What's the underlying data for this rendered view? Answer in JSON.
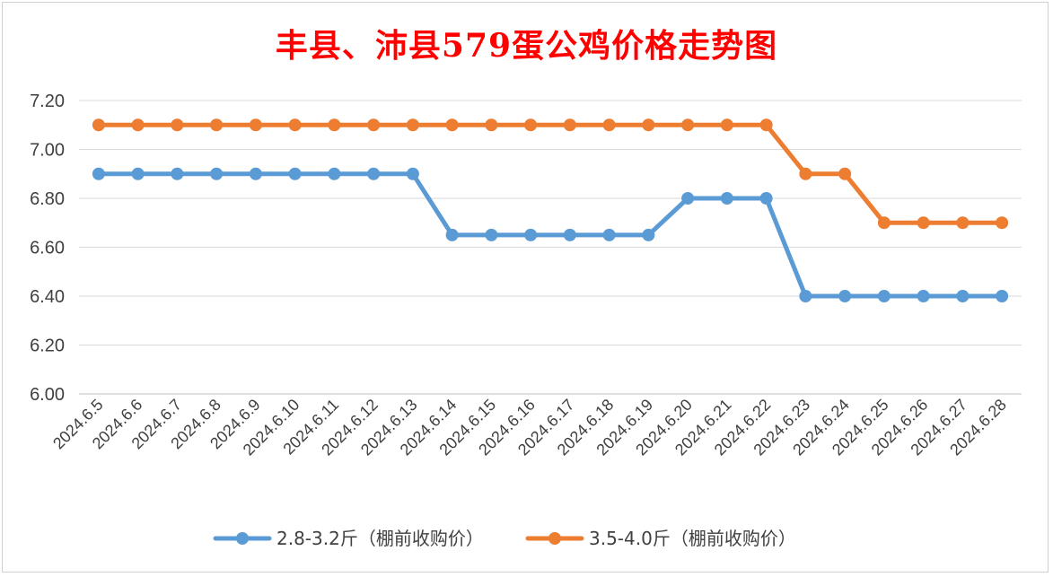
{
  "chart_data": {
    "type": "line",
    "title": "丰县、沛县579蛋公鸡价格走势图",
    "xlabel": "",
    "ylabel": "",
    "ylim": [
      6.0,
      7.2
    ],
    "yticks": [
      "6.00",
      "6.20",
      "6.40",
      "6.60",
      "6.80",
      "7.00",
      "7.20"
    ],
    "grid": true,
    "legend_position": "bottom",
    "x": [
      "2024.6.5",
      "2024.6.6",
      "2024.6.7",
      "2024.6.8",
      "2024.6.9",
      "2024.6.10",
      "2024.6.11",
      "2024.6.12",
      "2024.6.13",
      "2024.6.14",
      "2024.6.15",
      "2024.6.16",
      "2024.6.17",
      "2024.6.18",
      "2024.6.19",
      "2024.6.20",
      "2024.6.21",
      "2024.6.22",
      "2024.6.23",
      "2024.6.24",
      "2024.6.25",
      "2024.6.26",
      "2024.6.27",
      "2024.6.28"
    ],
    "series": [
      {
        "name": "2.8-3.2斤（棚前收购价）",
        "color": "#5b9bd5",
        "values": [
          6.9,
          6.9,
          6.9,
          6.9,
          6.9,
          6.9,
          6.9,
          6.9,
          6.9,
          6.65,
          6.65,
          6.65,
          6.65,
          6.65,
          6.65,
          6.8,
          6.8,
          6.8,
          6.4,
          6.4,
          6.4,
          6.4,
          6.4,
          6.4
        ]
      },
      {
        "name": "3.5-4.0斤（棚前收购价）",
        "color": "#ed7d31",
        "values": [
          7.1,
          7.1,
          7.1,
          7.1,
          7.1,
          7.1,
          7.1,
          7.1,
          7.1,
          7.1,
          7.1,
          7.1,
          7.1,
          7.1,
          7.1,
          7.1,
          7.1,
          7.1,
          6.9,
          6.9,
          6.7,
          6.7,
          6.7,
          6.7
        ]
      }
    ]
  }
}
